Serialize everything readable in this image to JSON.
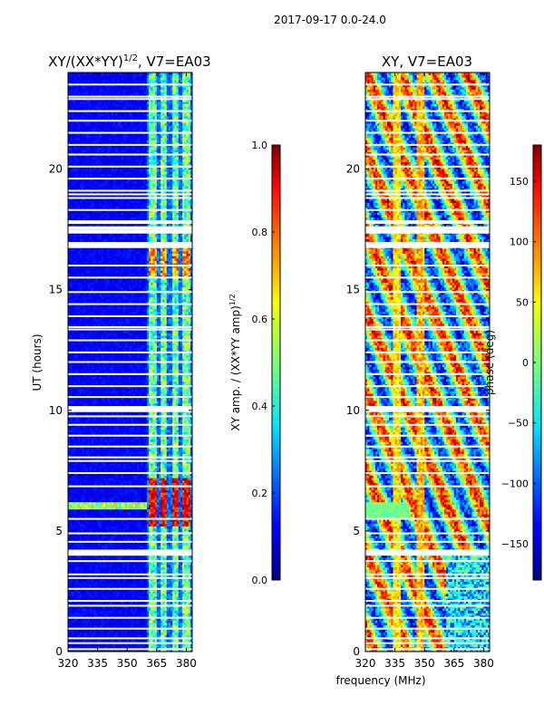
{
  "chart_data": [
    {
      "type": "heatmap",
      "panel": "left",
      "title_main": "XY/(XX*YY)",
      "title_sup": "1/2",
      "title_tail": ", V7=EA03",
      "ylabel": "UT (hours)",
      "xlim": [
        320,
        383
      ],
      "ylim": [
        0,
        24
      ],
      "xticks": [
        320,
        335,
        350,
        365,
        380
      ],
      "yticks": [
        0,
        5,
        10,
        15,
        20
      ],
      "clim": [
        0.0,
        1.0
      ],
      "colorbar": {
        "label_main": "XY amp. / (XX*YY amp)",
        "label_sup": "1/2",
        "ticks": [
          "0.0",
          "0.2",
          "0.4",
          "0.6",
          "0.8",
          "1.0"
        ],
        "tick_values": [
          0.0,
          0.2,
          0.4,
          0.6,
          0.8,
          1.0
        ]
      }
    },
    {
      "type": "heatmap",
      "panel": "right",
      "title": "XY, V7=EA03",
      "xlim": [
        320,
        383
      ],
      "ylim": [
        0,
        24
      ],
      "xticks": [
        320,
        335,
        350,
        365,
        380
      ],
      "yticks": [
        0,
        5,
        10,
        15,
        20
      ],
      "clim": [
        -180,
        180
      ],
      "colorbar": {
        "label": "phase (deg)",
        "ticks": [
          "−150",
          "−100",
          "−50",
          "0",
          "50",
          "100",
          "150"
        ],
        "tick_values": [
          -150,
          -100,
          -50,
          0,
          50,
          100,
          150
        ]
      }
    }
  ],
  "figure": {
    "suptitle": "2017-09-17 0.0-24.0",
    "xlabel": "frequency (MHz)"
  },
  "data_gaps_hours": [
    0.1,
    0.35,
    0.55,
    0.95,
    1.4,
    1.9,
    2.1,
    2.6,
    3.05,
    3.2,
    3.75,
    4.05,
    4.15,
    4.55,
    4.9,
    5.5,
    6.85,
    7.4,
    7.9,
    8.05,
    8.5,
    8.95,
    9.4,
    9.75,
    10.0,
    10.1,
    10.55,
    11.0,
    11.5,
    12.0,
    12.4,
    12.9,
    13.35,
    13.45,
    13.9,
    14.4,
    14.9,
    15.5,
    16.0,
    16.8,
    16.9,
    17.4,
    17.55,
    17.8,
    18.3,
    18.8,
    18.95,
    19.1,
    19.6,
    20.1,
    20.6,
    21.0,
    21.5,
    22.0,
    22.4,
    22.9,
    23.0,
    23.5
  ]
}
